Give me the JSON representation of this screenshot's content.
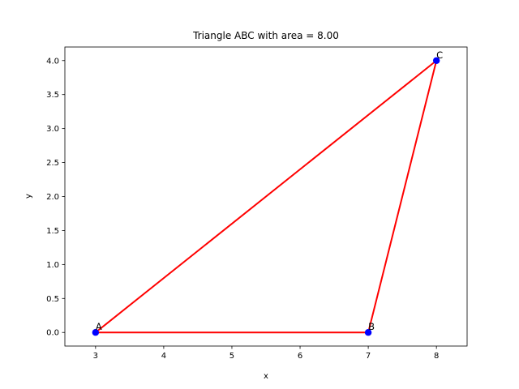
{
  "chart_data": {
    "type": "line",
    "title": "Triangle ABC with area = 8.00",
    "xlabel": "x",
    "ylabel": "y",
    "xlim": [
      2.55,
      8.45
    ],
    "ylim": [
      -0.2,
      4.2
    ],
    "xticks": [
      3,
      4,
      5,
      6,
      7,
      8
    ],
    "xtick_labels": [
      "3",
      "4",
      "5",
      "6",
      "7",
      "8"
    ],
    "yticks": [
      0.0,
      0.5,
      1.0,
      1.5,
      2.0,
      2.5,
      3.0,
      3.5,
      4.0
    ],
    "ytick_labels": [
      "0.0",
      "0.5",
      "1.0",
      "1.5",
      "2.0",
      "2.5",
      "3.0",
      "3.5",
      "4.0"
    ],
    "grid": false,
    "points": [
      {
        "label": "A",
        "x": 3,
        "y": 0
      },
      {
        "label": "B",
        "x": 7,
        "y": 0
      },
      {
        "label": "C",
        "x": 8,
        "y": 4
      }
    ],
    "edges": [
      [
        "A",
        "B"
      ],
      [
        "B",
        "C"
      ],
      [
        "C",
        "A"
      ]
    ],
    "edge_color": "#ff0000",
    "point_color": "#0000ff"
  }
}
